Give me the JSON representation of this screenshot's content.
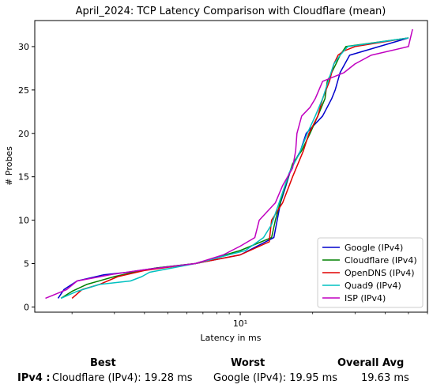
{
  "chart_data": {
    "type": "line",
    "title": "April_2024: TCP Latency Comparison with Cloudflare (mean)",
    "xlabel": "Latency in ms",
    "ylabel": "# Probes",
    "xscale": "log",
    "xlim": [
      1.4,
      60
    ],
    "ylim": [
      -0.6,
      33
    ],
    "yticks": [
      0,
      5,
      10,
      15,
      20,
      25,
      30
    ],
    "xtick_label": "10¹",
    "grid": false,
    "legend_position": "lower right",
    "series": [
      {
        "name": "Google (IPv4)",
        "color": "#0000cc",
        "x": [
          1.75,
          1.85,
          2.1,
          2.7,
          3.4,
          4.5,
          6.5,
          10.0,
          13.8,
          14.7,
          15.5,
          16.3,
          17.8,
          18.8,
          22.0,
          24.0,
          24.8,
          26.0,
          28.5,
          50.0
        ],
        "y": [
          1,
          2,
          3,
          3.7,
          4,
          4.5,
          5,
          6,
          8,
          12,
          14,
          16,
          18,
          20,
          22,
          24,
          25,
          27,
          29,
          31
        ]
      },
      {
        "name": "Cloudflare (IPv4)",
        "color": "#008000",
        "x": [
          1.8,
          2.0,
          2.3,
          3.0,
          3.6,
          4.5,
          6.5,
          10.0,
          13.5,
          14.0,
          15.0,
          16.5,
          18.0,
          19.5,
          21.0,
          22.5,
          23.0,
          25.0,
          26.0,
          27.5,
          50.0
        ],
        "y": [
          1,
          1.8,
          2.6,
          3.5,
          4,
          4.5,
          5,
          6.5,
          8,
          10,
          13,
          16.5,
          18,
          20,
          22,
          24,
          26,
          28,
          29,
          30,
          31
        ]
      },
      {
        "name": "OpenDNS (IPv4)",
        "color": "#e00000",
        "x": [
          2.0,
          2.2,
          2.6,
          3.1,
          4.0,
          6.5,
          10.0,
          13.2,
          13.5,
          15.0,
          16.5,
          18.3,
          19.3,
          21.0,
          22.0,
          23.5,
          24.5,
          25.5,
          27.0,
          30.0,
          50.0
        ],
        "y": [
          1,
          2,
          2.6,
          3.5,
          4.2,
          5,
          6,
          7.5,
          10,
          12,
          15,
          18,
          20,
          22,
          24,
          26,
          28,
          29,
          29.5,
          30,
          31
        ]
      },
      {
        "name": "Quad9 (IPv4)",
        "color": "#00c0c0",
        "x": [
          1.8,
          2.1,
          2.6,
          3.5,
          3.9,
          4.2,
          6.5,
          10.5,
          12.5,
          13.5,
          14.5,
          16.0,
          17.5,
          19.0,
          20.5,
          22.0,
          24.5,
          26.0,
          28.0,
          50.0
        ],
        "y": [
          1,
          1.8,
          2.6,
          3,
          3.5,
          4,
          5,
          6.5,
          8,
          9.5,
          12,
          15.5,
          17.5,
          20,
          22,
          24,
          28,
          29,
          30,
          31
        ]
      },
      {
        "name": "ISP (IPv4)",
        "color": "#c000c0",
        "x": [
          1.55,
          1.9,
          2.1,
          3.0,
          4.0,
          6.5,
          8.5,
          10.0,
          11.5,
          12.0,
          14.0,
          15.0,
          16.5,
          17.0,
          17.2,
          18.0,
          19.5,
          20.5,
          22.0,
          27.0,
          30.0,
          35.0,
          50.0,
          52.0
        ],
        "y": [
          1,
          2,
          3,
          3.8,
          4.3,
          5,
          6,
          7,
          8,
          10,
          12,
          14,
          16,
          18,
          20,
          22,
          23,
          24,
          26,
          27,
          28,
          29,
          30,
          32
        ]
      }
    ]
  },
  "summary": {
    "best_label": "Best",
    "worst_label": "Worst",
    "avg_label": "Overall Avg",
    "row_label": "IPv4 :",
    "best_value": "Cloudflare (IPv4): 19.28 ms",
    "worst_value": "Google (IPv4): 19.95 ms",
    "avg_value": "19.63 ms"
  }
}
